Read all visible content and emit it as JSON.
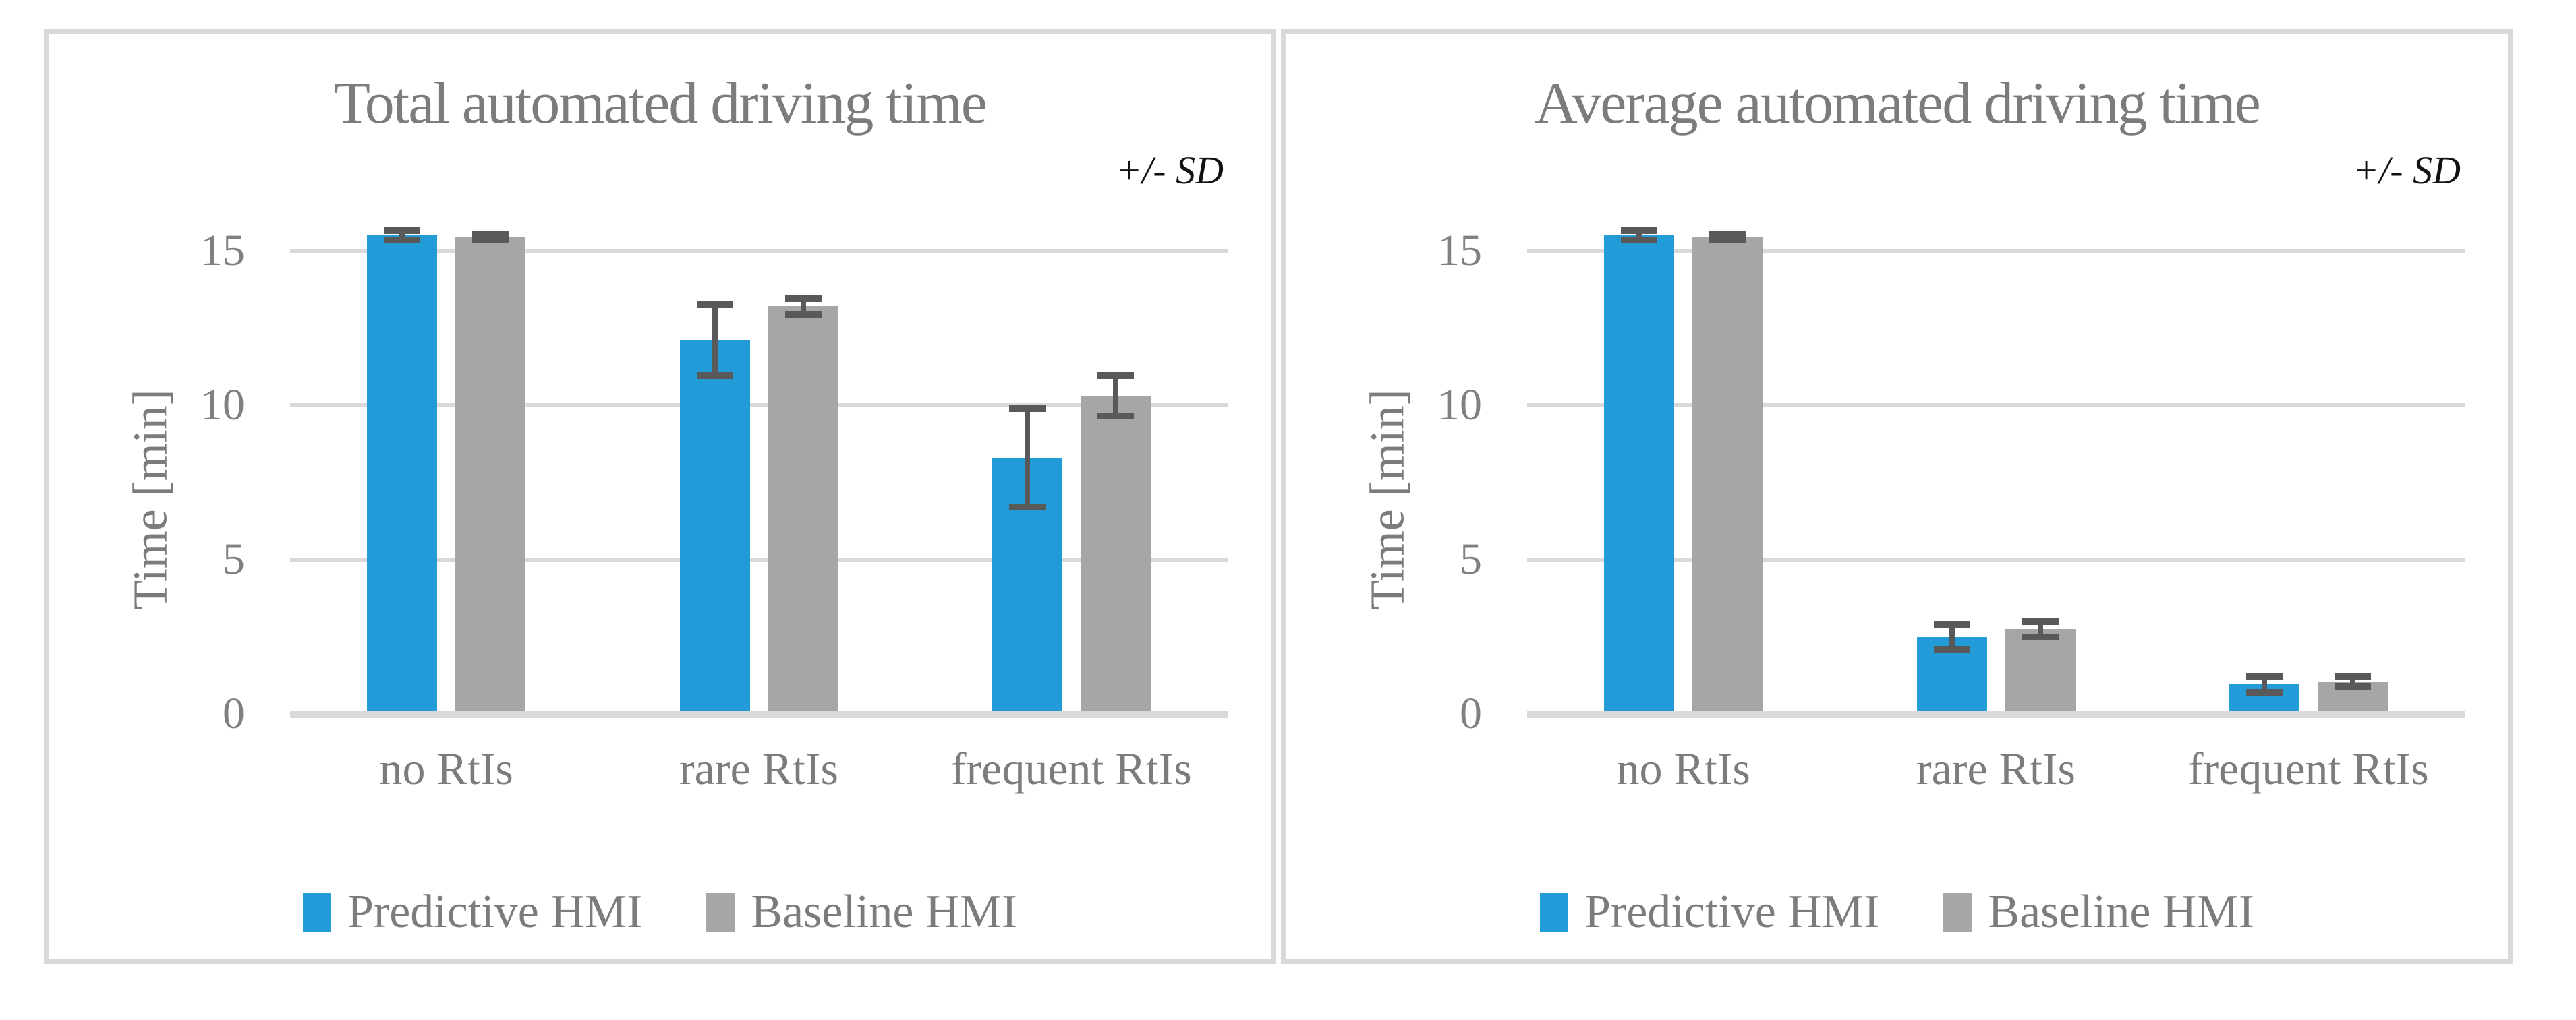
{
  "styles": {
    "frame_color": "#D9D9D9",
    "gridline_color": "#D9D9D9",
    "error_bar_color": "#595959",
    "text_color": "#7C7C7C",
    "predictive_color": "#219CD8",
    "baseline_color": "#A6A6A6"
  },
  "chart_data": [
    {
      "type": "bar",
      "title": "Total automated driving time",
      "sd_note": "+/- SD",
      "ylabel": "Time [min]",
      "xlabel": "",
      "categories": [
        "no RtIs",
        "rare RtIs",
        "frequent RtIs"
      ],
      "series": [
        {
          "name": "Predictive HMI",
          "color": "#219CD8",
          "values": [
            15.5,
            12.1,
            8.3
          ],
          "sd": [
            0.15,
            1.15,
            1.6
          ]
        },
        {
          "name": "Baseline HMI",
          "color": "#A6A6A6",
          "values": [
            15.45,
            13.2,
            10.3
          ],
          "sd": [
            0.08,
            0.25,
            0.65
          ]
        }
      ],
      "y_ticks": [
        0,
        5,
        10,
        15
      ],
      "ylim": [
        0,
        16.5
      ],
      "grid": true,
      "legend_position": "bottom",
      "error_bars": "plus-minus SD"
    },
    {
      "type": "bar",
      "title": "Average automated driving time",
      "sd_note": "+/- SD",
      "ylabel": "Time [min]",
      "xlabel": "",
      "categories": [
        "no RtIs",
        "rare RtIs",
        "frequent RtIs"
      ],
      "series": [
        {
          "name": "Predictive HMI",
          "color": "#219CD8",
          "values": [
            15.5,
            2.5,
            0.95
          ],
          "sd": [
            0.15,
            0.4,
            0.25
          ]
        },
        {
          "name": "Baseline HMI",
          "color": "#A6A6A6",
          "values": [
            15.45,
            2.75,
            1.05
          ],
          "sd": [
            0.08,
            0.25,
            0.15
          ]
        }
      ],
      "y_ticks": [
        0,
        5,
        10,
        15
      ],
      "ylim": [
        0,
        16.5
      ],
      "grid": true,
      "legend_position": "bottom",
      "error_bars": "plus-minus SD"
    }
  ]
}
